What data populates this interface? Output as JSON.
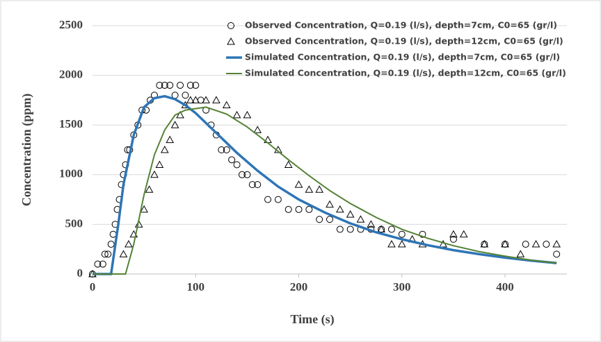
{
  "chart_data": {
    "type": "line",
    "x_label": "Time (s)",
    "y_label": "Concentration (ppm)",
    "xlim": [
      0,
      460
    ],
    "ylim": [
      0,
      2500
    ],
    "xticks": [
      0,
      100,
      200,
      300,
      400
    ],
    "yticks": [
      0,
      500,
      1000,
      1500,
      2000,
      2500
    ],
    "grid": true,
    "legend": "top-right",
    "series": [
      {
        "name": "Observed Concentration, Q=0.19 (l/s), depth=7cm, C0=65 (gr/l)",
        "mark": "circle",
        "color": "#000000",
        "x": [
          0,
          5,
          10,
          12,
          15,
          18,
          20,
          22,
          24,
          26,
          28,
          30,
          32,
          34,
          36,
          40,
          44,
          48,
          52,
          56,
          60,
          65,
          70,
          75,
          80,
          85,
          90,
          95,
          100,
          105,
          110,
          115,
          120,
          125,
          130,
          135,
          140,
          145,
          150,
          155,
          160,
          170,
          180,
          190,
          200,
          210,
          220,
          230,
          240,
          250,
          260,
          270,
          280,
          290,
          300,
          320,
          350,
          380,
          400,
          420,
          440,
          450
        ],
        "values": [
          0,
          100,
          100,
          200,
          200,
          300,
          400,
          500,
          650,
          750,
          900,
          1000,
          1100,
          1250,
          1250,
          1400,
          1500,
          1650,
          1650,
          1750,
          1800,
          1900,
          1900,
          1900,
          1800,
          1900,
          1800,
          1900,
          1900,
          1750,
          1650,
          1500,
          1400,
          1250,
          1250,
          1150,
          1100,
          1000,
          1000,
          900,
          900,
          750,
          750,
          650,
          650,
          650,
          550,
          550,
          450,
          450,
          450,
          450,
          450,
          450,
          400,
          400,
          350,
          300,
          300,
          300,
          300,
          200
        ]
      },
      {
        "name": "Observed Concentration, Q=0.19 (l/s), depth=12cm, C0=65 (gr/l)",
        "mark": "triangle",
        "color": "#000000",
        "x": [
          0,
          30,
          35,
          40,
          45,
          50,
          55,
          60,
          65,
          70,
          75,
          80,
          85,
          90,
          95,
          100,
          110,
          120,
          130,
          140,
          150,
          160,
          170,
          180,
          190,
          200,
          210,
          220,
          230,
          240,
          250,
          260,
          270,
          280,
          290,
          300,
          310,
          320,
          340,
          350,
          360,
          380,
          400,
          415,
          430,
          450
        ],
        "values": [
          0,
          200,
          300,
          400,
          500,
          650,
          850,
          1000,
          1100,
          1250,
          1350,
          1500,
          1600,
          1700,
          1750,
          1750,
          1750,
          1750,
          1700,
          1600,
          1600,
          1450,
          1350,
          1250,
          1100,
          900,
          850,
          850,
          700,
          650,
          600,
          550,
          500,
          450,
          300,
          300,
          350,
          300,
          300,
          400,
          400,
          300,
          300,
          200,
          300,
          300
        ]
      },
      {
        "name": "Simulated Concentration, Q=0.19 (l/s), depth=7cm, C0=65 (gr/l)",
        "mark": "line",
        "color": "#2e75b6",
        "x": [
          0,
          18,
          25,
          30,
          40,
          50,
          60,
          70,
          80,
          90,
          100,
          120,
          140,
          160,
          180,
          200,
          225,
          250,
          275,
          300,
          325,
          350,
          375,
          400,
          425,
          450
        ],
        "values": [
          0,
          0,
          500,
          900,
          1400,
          1680,
          1770,
          1790,
          1760,
          1700,
          1620,
          1420,
          1220,
          1040,
          880,
          750,
          620,
          510,
          420,
          350,
          290,
          240,
          200,
          165,
          135,
          110
        ]
      },
      {
        "name": "Simulated Concentration, Q=0.19 (l/s), depth=12cm, C0=65 (gr/l)",
        "mark": "line",
        "color": "#548235",
        "x": [
          0,
          32,
          40,
          50,
          60,
          70,
          80,
          90,
          110,
          130,
          150,
          170,
          190,
          210,
          230,
          250,
          275,
          300,
          325,
          350,
          375,
          400,
          425,
          450
        ],
        "values": [
          0,
          0,
          300,
          800,
          1200,
          1450,
          1600,
          1650,
          1680,
          1610,
          1480,
          1320,
          1150,
          990,
          840,
          710,
          570,
          450,
          360,
          285,
          225,
          180,
          140,
          110
        ]
      }
    ]
  }
}
